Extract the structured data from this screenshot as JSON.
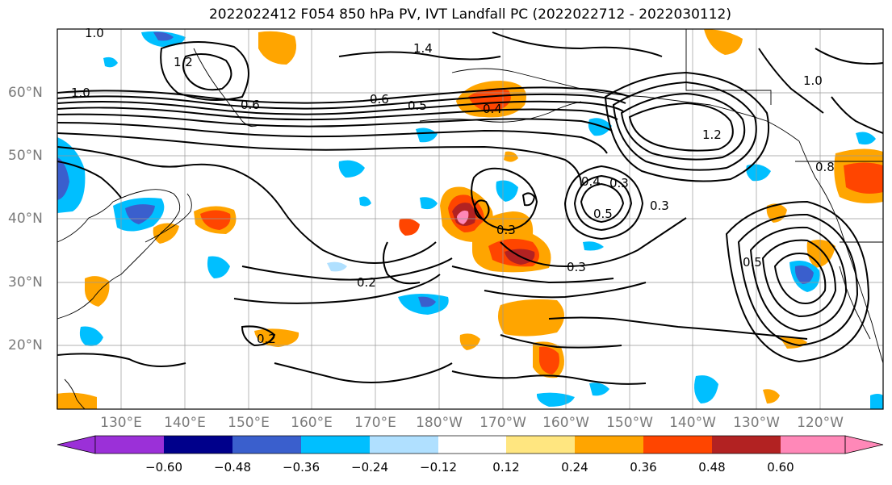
{
  "title": "2022022412 F054 850 hPa PV, IVT Landfall PC (2022022712 - 2022030112)",
  "lat_labels": [
    "60°N",
    "50°N",
    "40°N",
    "30°N",
    "20°N"
  ],
  "lon_labels": [
    "130°E",
    "140°E",
    "150°E",
    "160°E",
    "170°E",
    "180°W",
    "170°W",
    "160°W",
    "150°W",
    "140°W",
    "130°W",
    "120°W"
  ],
  "contour_labels": [
    "1.0",
    "1.2",
    "1.4",
    "0.6",
    "0.5",
    "0.4",
    "0.3",
    "0.3",
    "0.3",
    "0.2",
    "0.2",
    "0.3",
    "0.5",
    "1.2",
    "0.8",
    "1.0",
    "1.0",
    "0.5",
    "0.6",
    "0.4"
  ],
  "colorbar": {
    "ticks": [
      "−0.60",
      "−0.48",
      "−0.36",
      "−0.24",
      "−0.12",
      "0.12",
      "0.24",
      "0.36",
      "0.48",
      "0.60"
    ],
    "colors": [
      "#9b30d8",
      "#00008b",
      "#3a5fcd",
      "#00bfff",
      "#b0e0ff",
      "#ffffff",
      "#ffe680",
      "#ffa500",
      "#ff4500",
      "#b22222",
      "#ff88b8"
    ]
  },
  "colors": {
    "contour": "#000000",
    "coastline": "#000000",
    "grid": "#999999",
    "label_gray": "#7a7a7a"
  }
}
